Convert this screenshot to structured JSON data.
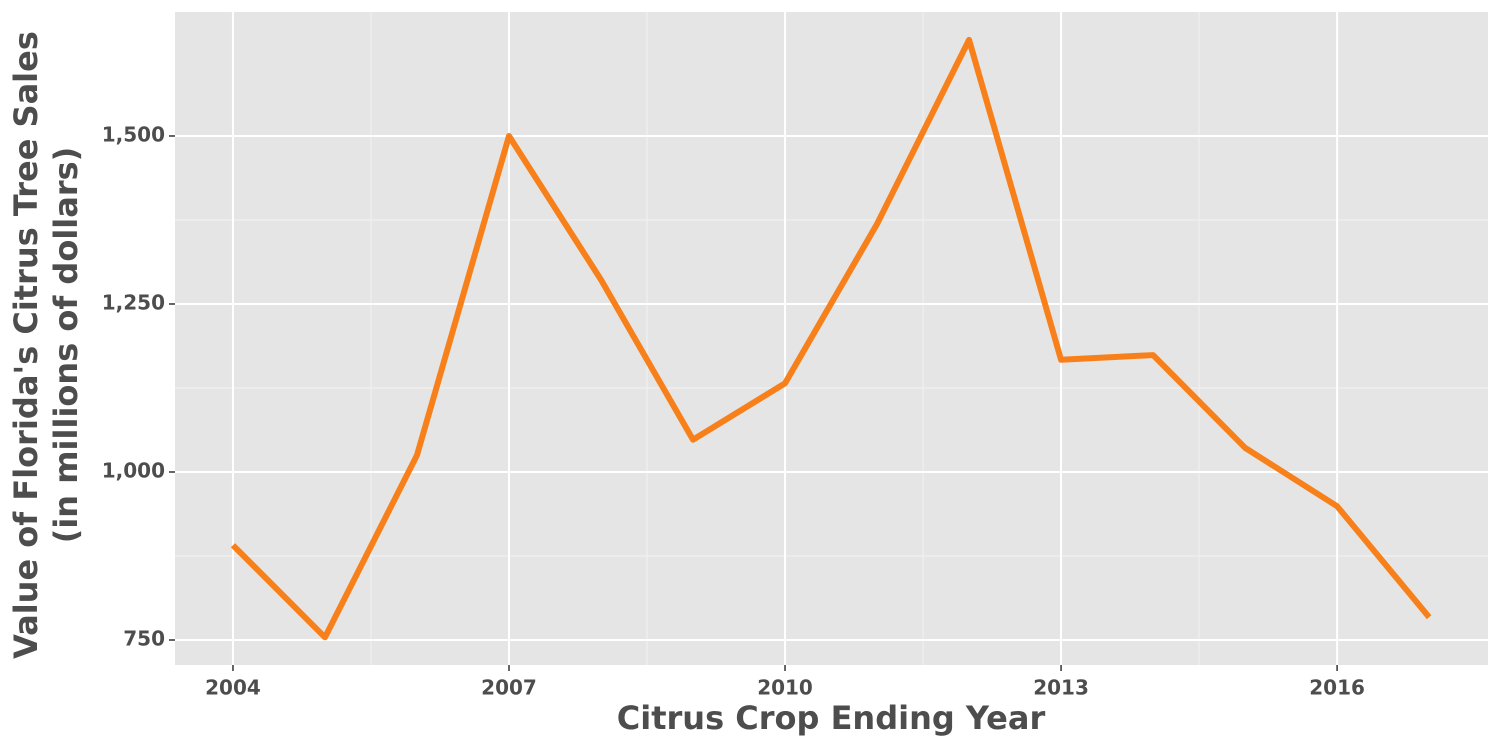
{
  "chart_data": {
    "type": "line",
    "x_label": "Citrus Crop Ending Year",
    "y_label": [
      "Value of Florida's Citrus Tree Sales",
      "(in millions of dollars)"
    ],
    "x": [
      2004,
      2005,
      2006,
      2007,
      2008,
      2009,
      2010,
      2011,
      2012,
      2013,
      2014,
      2015,
      2016,
      2017
    ],
    "series": [
      {
        "name": "Citrus tree sales",
        "color": "#f8801a",
        "values": [
          891,
          754,
          1025,
          1500,
          1286,
          1048,
          1132,
          1369,
          1643,
          1167,
          1174,
          1036,
          949,
          784
        ]
      }
    ],
    "xlim": [
      2003.37,
      2017.64
    ],
    "xticks": [
      2004,
      2007,
      2010,
      2013,
      2016
    ],
    "ylim": [
      712.8,
      1684.5
    ],
    "yticks": [
      750,
      {
        "value": 1000,
        "label": "1,000"
      },
      {
        "value": 1250,
        "label": "1,250"
      },
      {
        "value": 1500,
        "label": "1,500"
      }
    ],
    "grid": true
  }
}
